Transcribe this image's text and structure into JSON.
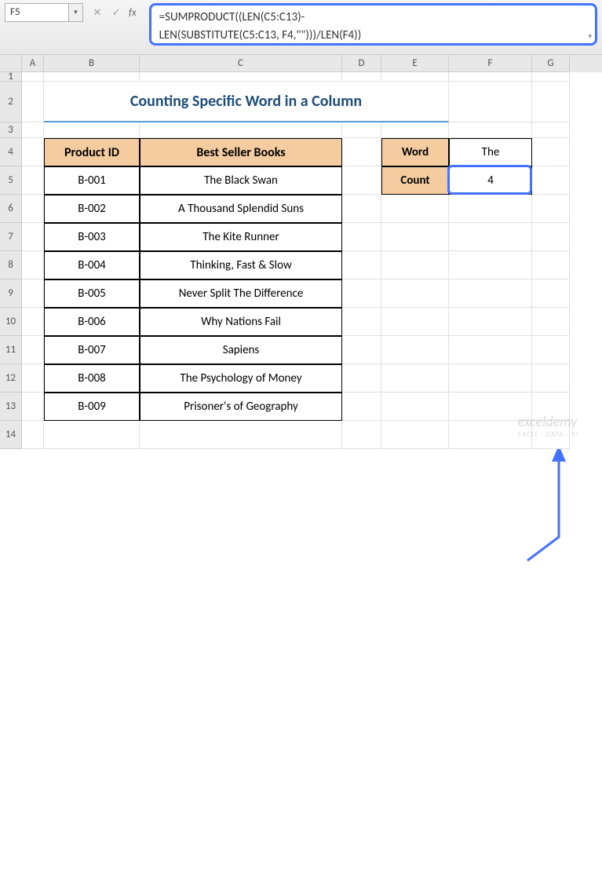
{
  "namebox": "F5",
  "formula": {
    "line1": "=SUMPRODUCT((LEN(C5:C13)-",
    "line2": "LEN(SUBSTITUTE(C5:C13, F4,\"\")))/LEN(F4))"
  },
  "columns": [
    "A",
    "B",
    "C",
    "D",
    "E",
    "F",
    "G"
  ],
  "colWidths": {
    "A": 28,
    "B": 122,
    "C": 258,
    "D": 50,
    "E": 86,
    "F": 106,
    "G": 48
  },
  "title": "Counting Specific Word in a Column",
  "table": {
    "headers": {
      "pid": "Product ID",
      "books": "Best Seller Books"
    },
    "rows": [
      {
        "pid": "B-001",
        "book": "The Black Swan"
      },
      {
        "pid": "B-002",
        "book": "A Thousand Splendid Suns"
      },
      {
        "pid": "B-003",
        "book": "The Kite Runner"
      },
      {
        "pid": "B-004",
        "book": "Thinking, Fast & Slow"
      },
      {
        "pid": "B-005",
        "book": "Never Split The Difference"
      },
      {
        "pid": "B-006",
        "book": "Why Nations Fail"
      },
      {
        "pid": "B-007",
        "book": "Sapiens"
      },
      {
        "pid": "B-008",
        "book": "The Psychology of Money"
      },
      {
        "pid": "B-009",
        "book": "Prisoner's of Geography"
      }
    ]
  },
  "side": {
    "word_label": "Word",
    "word_value": "The",
    "count_label": "Count",
    "count_value": "4"
  },
  "colors": {
    "header_bg": "#f4cca0",
    "title_color": "#1f4e79",
    "title_underline": "#5b9bd5",
    "highlight": "#4472ff"
  },
  "watermark": {
    "brand": "exceldemy",
    "tag": "EXCEL · DATA · BI"
  }
}
